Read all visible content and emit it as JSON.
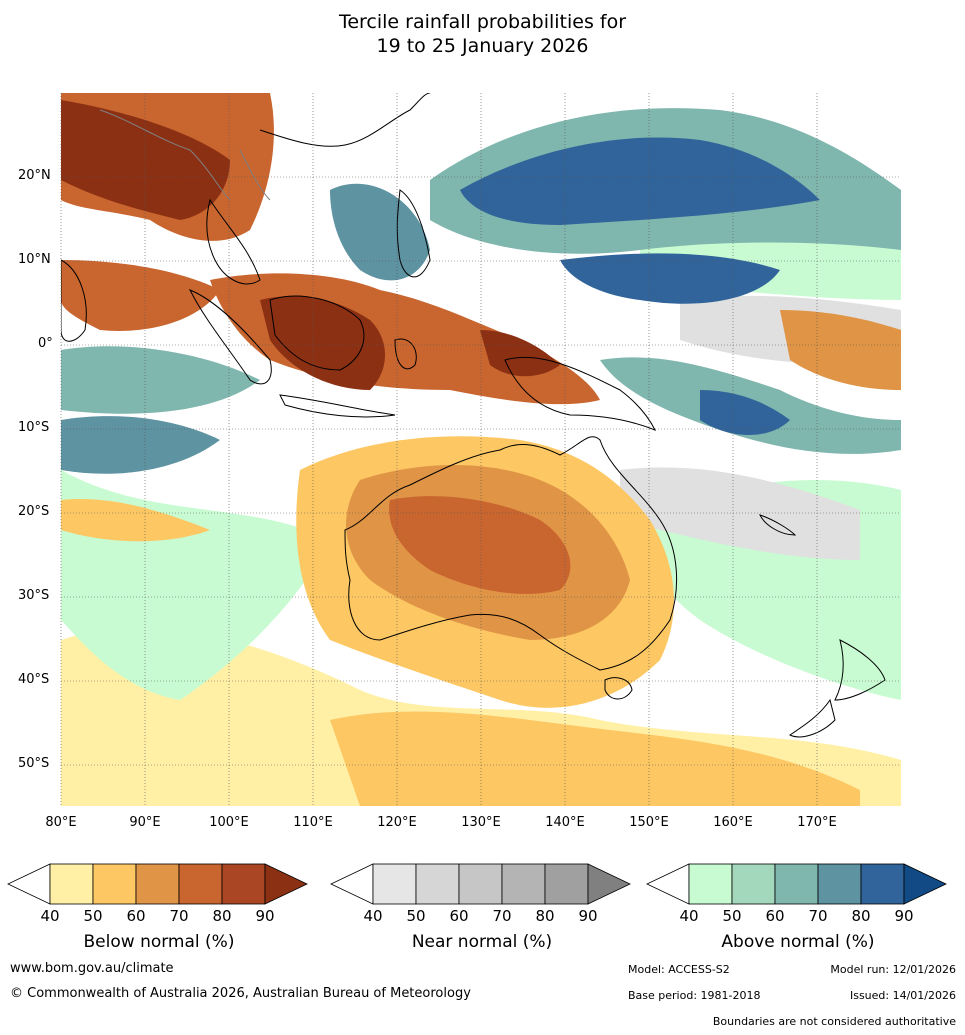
{
  "title_line1": "Tercile rainfall probabilities for",
  "title_line2": "19 to 25 January 2026",
  "lat_labels": [
    "20°N",
    "10°N",
    "0°",
    "10°S",
    "20°S",
    "30°S",
    "40°S",
    "50°S"
  ],
  "lon_labels": [
    "80°E",
    "90°E",
    "100°E",
    "110°E",
    "120°E",
    "130°E",
    "140°E",
    "150°E",
    "160°E",
    "170°E"
  ],
  "legends": {
    "below": {
      "title": "Below normal (%)",
      "ticks": [
        "40",
        "50",
        "60",
        "70",
        "80",
        "90"
      ],
      "colors": [
        "#ffffff",
        "#fff0a6",
        "#fdc864",
        "#e09445",
        "#c9652e",
        "#ab4624",
        "#8c3014"
      ]
    },
    "near": {
      "title": "Near normal (%)",
      "ticks": [
        "40",
        "50",
        "60",
        "70",
        "80",
        "90"
      ],
      "colors": [
        "#ffffff",
        "#e6e6e6",
        "#d6d6d6",
        "#c6c6c6",
        "#b4b4b4",
        "#a0a0a0",
        "#808080"
      ]
    },
    "above": {
      "title": "Above normal (%)",
      "ticks": [
        "40",
        "50",
        "60",
        "70",
        "80",
        "90"
      ],
      "colors": [
        "#ffffff",
        "#c8fbd2",
        "#a4d8bc",
        "#7fb6ad",
        "#5e93a2",
        "#31649a",
        "#124a85"
      ]
    }
  },
  "footer": {
    "website": "www.bom.gov.au/climate",
    "copyright": "© Commonwealth of Australia 2026, Australian Bureau of Meteorology",
    "model": "Model: ACCESS-S2",
    "model_run": "Model run: 12/01/2026",
    "base_period": "Base period: 1981-2018",
    "issued": "Issued: 14/01/2026",
    "disclaimer": "Boundaries are not considered authoritative"
  },
  "colors": {
    "below_dark": "#8c3014",
    "below_mid": "#c9652e",
    "below_light": "#fdc864",
    "below_pale": "#fff0a6",
    "near_light": "#e0e0e0",
    "above_pale": "#c8fbd2",
    "above_mid": "#7fb6ad",
    "above_dark": "#31649a",
    "coast": "#000000",
    "border": "#808080",
    "grid": "#555555"
  }
}
